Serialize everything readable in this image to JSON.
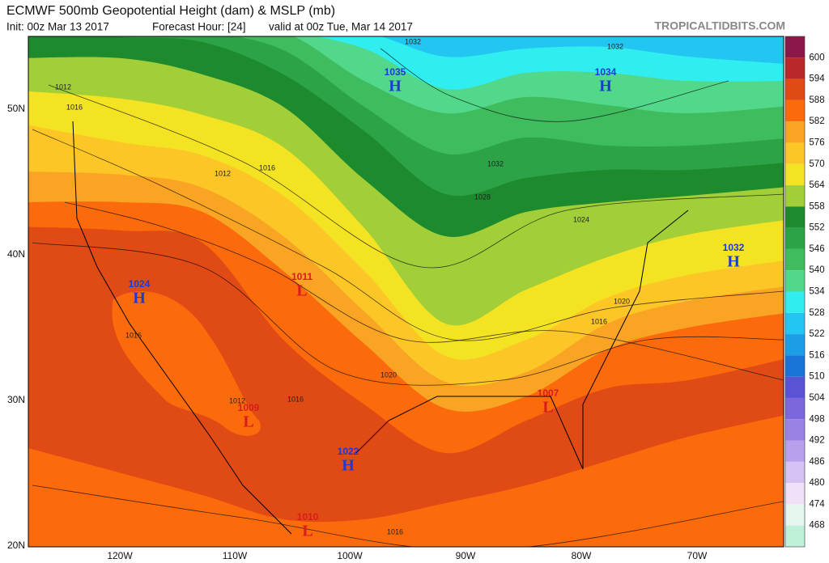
{
  "header": {
    "title": "ECMWF 500mb Geopotential Height (dam) & MSLP (mb)",
    "init": "Init: 00z Mar 13 2017",
    "forecast_hour": "Forecast Hour: [24]",
    "valid": "valid at 00z Tue, Mar 14 2017",
    "source": "TROPICALTIDBITS.COM"
  },
  "colorbar": {
    "levels": [
      600,
      594,
      588,
      582,
      576,
      570,
      564,
      558,
      552,
      546,
      540,
      534,
      528,
      522,
      516,
      510,
      504,
      498,
      492,
      486,
      480,
      474,
      468
    ],
    "colors": [
      "#8a1848",
      "#b82a2a",
      "#e04a14",
      "#fb6b0c",
      "#f9a423",
      "#fcc626",
      "#f3e322",
      "#a2cf38",
      "#1d8a2e",
      "#2ba346",
      "#3fbc5e",
      "#52d88a",
      "#30eef0",
      "#22c6f0",
      "#1d9de6",
      "#1a74d6",
      "#5a54d4",
      "#7c68dc",
      "#9a82e4",
      "#b8a0ec",
      "#d6c2f4",
      "#f0e0f8",
      "#e4f6ee",
      "#bff0d8"
    ]
  },
  "axes": {
    "lat_labels": [
      "50N",
      "40N",
      "30N",
      "20N"
    ],
    "lon_labels": [
      "120W",
      "110W",
      "100W",
      "90W",
      "80W",
      "70W"
    ]
  },
  "centers": [
    {
      "type": "H",
      "pressure": 1035
    },
    {
      "type": "H",
      "pressure": 1034
    },
    {
      "type": "H",
      "pressure": 1032
    },
    {
      "type": "H",
      "pressure": 1024
    },
    {
      "type": "L",
      "pressure": 1011
    },
    {
      "type": "L",
      "pressure": 1009
    },
    {
      "type": "H",
      "pressure": 1022
    },
    {
      "type": "L",
      "pressure": 1007
    },
    {
      "type": "L",
      "pressure": 1010
    }
  ],
  "isobar_labels": [
    1032,
    1032,
    1012,
    1016,
    1012,
    1016,
    1032,
    1028,
    1024,
    1020,
    1016,
    1020,
    1016,
    1012,
    1016,
    1016
  ]
}
